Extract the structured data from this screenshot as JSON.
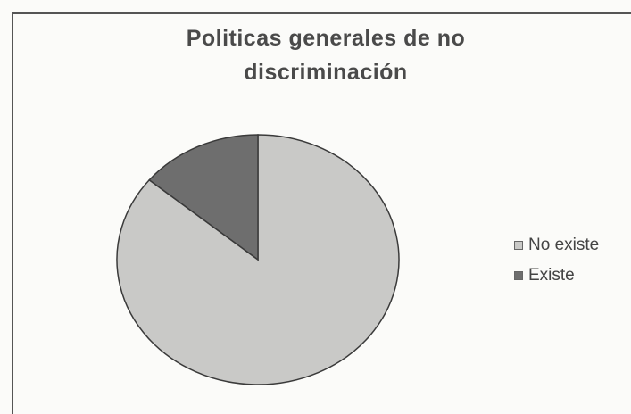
{
  "chart_data": {
    "type": "pie",
    "title": "Politicas generales de no discriminación",
    "categories": [
      "No existe",
      "Existe"
    ],
    "values": [
      86,
      14
    ],
    "colors": [
      "#c9c9c7",
      "#6e6e6e"
    ],
    "legend_position": "right"
  }
}
